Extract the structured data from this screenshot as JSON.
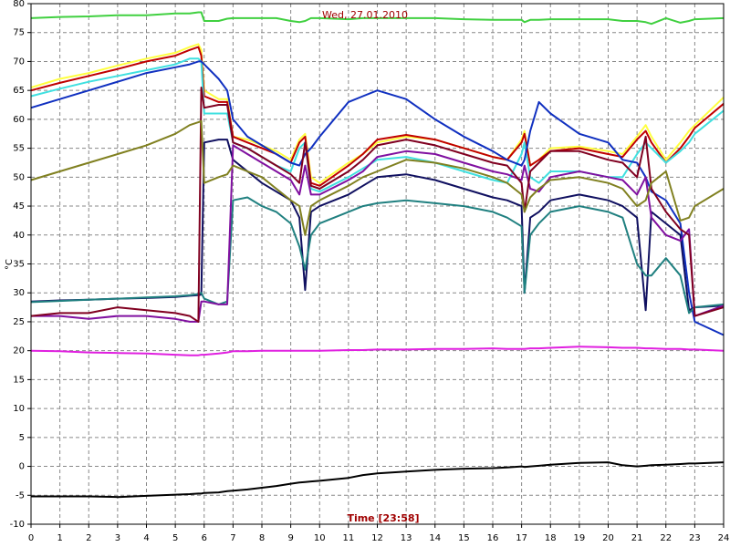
{
  "chart_data": {
    "type": "line",
    "title": "Wed, 27.01.2010",
    "x_label": "Time [23:58]",
    "y_label": "°C",
    "x": [
      0,
      1,
      2,
      3,
      4,
      5,
      5.5,
      5.8,
      5.9,
      6,
      6.5,
      6.8,
      7,
      7.5,
      8,
      8.5,
      9,
      9.3,
      9.5,
      9.7,
      10,
      11,
      11.5,
      12,
      13,
      14,
      15,
      16,
      16.5,
      17,
      17.1,
      17.3,
      17.6,
      18,
      19,
      20,
      20.5,
      21,
      21.3,
      21.5,
      22,
      22.5,
      22.8,
      23,
      24
    ],
    "xlim": [
      0,
      24
    ],
    "xticks": [
      0,
      1,
      2,
      3,
      4,
      5,
      6,
      7,
      8,
      9,
      10,
      11,
      12,
      13,
      14,
      15,
      16,
      17,
      18,
      19,
      20,
      21,
      22,
      23,
      24
    ],
    "ylim": [
      -10,
      80
    ],
    "yticks": [
      -10,
      -5,
      0,
      5,
      10,
      15,
      20,
      25,
      30,
      35,
      40,
      45,
      50,
      55,
      60,
      65,
      70,
      75,
      80
    ],
    "grid": true,
    "series": [
      {
        "color": "#40d040",
        "values": [
          77.5,
          77.7,
          77.8,
          78,
          78,
          78.3,
          78.3,
          78.5,
          78.5,
          77,
          77,
          77.4,
          77.5,
          77.5,
          77.5,
          77.5,
          77,
          76.8,
          77,
          77.5,
          77.5,
          77.3,
          77.5,
          77.5,
          77.5,
          77.5,
          77.3,
          77.2,
          77.2,
          77.2,
          76.8,
          77.2,
          77.2,
          77.3,
          77.3,
          77.3,
          77,
          77,
          76.8,
          76.5,
          77.5,
          76.7,
          77,
          77.3,
          77.5
        ]
      },
      {
        "color": "#ffff40",
        "values": [
          65.5,
          67,
          68,
          69.3,
          70.5,
          71.5,
          72.5,
          73,
          72,
          65,
          63.5,
          63.5,
          57,
          56.5,
          55.5,
          54.5,
          53,
          56.5,
          57.5,
          50,
          49,
          52.5,
          54,
          56,
          57,
          56.5,
          55,
          53.5,
          53,
          56.5,
          58,
          52,
          53,
          55,
          55.3,
          54.5,
          54,
          57,
          59,
          57,
          53,
          56,
          58,
          59,
          63.8
        ]
      },
      {
        "color": "#c00000",
        "values": [
          65,
          66.3,
          67.5,
          68.7,
          70,
          71,
          72,
          72.5,
          71,
          64,
          63,
          63,
          57,
          56,
          55,
          54,
          52.5,
          56,
          57,
          49,
          48.5,
          52,
          54,
          56.5,
          57.3,
          56.5,
          55,
          53.5,
          53,
          56,
          57.5,
          52,
          53,
          54.5,
          55,
          54,
          53.5,
          56.5,
          58,
          56,
          52.5,
          55,
          57,
          58.5,
          62.7
        ]
      },
      {
        "color": "#40e0e0",
        "values": [
          64,
          65.3,
          66.5,
          67.5,
          68.5,
          69.5,
          70.5,
          70.5,
          70,
          61,
          61,
          61,
          56,
          55,
          53.5,
          52,
          51,
          55,
          56,
          48,
          47.5,
          50,
          51.5,
          53,
          53.5,
          52.5,
          51,
          49.5,
          49,
          54,
          56,
          50,
          49,
          51,
          51,
          50,
          50,
          54,
          56,
          55,
          52.5,
          54.5,
          56,
          57.5,
          61.5
        ]
      },
      {
        "color": "#1030c0",
        "values": [
          62,
          63.5,
          65,
          66.5,
          68,
          69,
          69.5,
          70,
          70,
          69.5,
          67,
          65,
          60,
          57,
          55.5,
          54,
          52.5,
          52,
          54,
          55,
          57,
          63,
          64,
          65,
          63.5,
          60,
          57,
          54.5,
          53,
          52,
          53,
          58,
          63,
          61,
          57.5,
          56,
          53,
          52.5,
          50,
          47.5,
          46,
          42,
          30,
          25,
          22.7
        ]
      },
      {
        "color": "#101060",
        "values": [
          28.5,
          28.7,
          28.8,
          29,
          29.1,
          29.3,
          29.5,
          29.6,
          29.7,
          56,
          56.5,
          56.5,
          53,
          51,
          49,
          47.5,
          46,
          43,
          30.5,
          44,
          45,
          47,
          48.5,
          50,
          50.5,
          49.5,
          48,
          46.5,
          46,
          45,
          30,
          43,
          44,
          46,
          47,
          46,
          45,
          43,
          27,
          44,
          42,
          40,
          27,
          27.5,
          27.8
        ]
      },
      {
        "color": "#208080",
        "values": [
          28.4,
          28.6,
          28.8,
          29,
          29.2,
          29.4,
          29.6,
          29.8,
          30,
          29,
          28,
          28.5,
          46,
          46.5,
          45,
          44,
          42,
          38,
          34,
          40,
          42,
          44,
          45,
          45.5,
          46,
          45.5,
          45,
          44,
          43,
          41.5,
          30,
          40,
          42,
          44,
          45,
          44,
          43,
          35,
          33,
          33,
          36,
          33,
          26.5,
          27.5,
          28
        ]
      },
      {
        "color": "#8010a0",
        "values": [
          26,
          26,
          25.5,
          26,
          26,
          25.5,
          25,
          25,
          28.5,
          28.5,
          28,
          28,
          55.5,
          54,
          52.5,
          51,
          49.5,
          47,
          52,
          47,
          47,
          49.5,
          51,
          53.5,
          54.5,
          54,
          52.5,
          51,
          50.5,
          49.5,
          52,
          48,
          47.5,
          50,
          51,
          50,
          49.5,
          47,
          50,
          43,
          40,
          39,
          41,
          26,
          27.8
        ]
      },
      {
        "color": "#800020",
        "values": [
          26,
          26.5,
          26.5,
          27.5,
          27,
          26.5,
          26,
          25,
          65.5,
          62,
          62.5,
          62.5,
          56,
          55,
          53.5,
          52,
          50.5,
          49,
          56,
          48.5,
          48,
          51,
          53,
          55.5,
          56.5,
          55.5,
          54,
          52.5,
          52,
          49,
          44,
          51,
          52.5,
          54.5,
          54.5,
          53,
          52.5,
          50,
          57,
          48,
          44,
          41,
          40,
          26,
          27.5
        ]
      },
      {
        "color": "#808020",
        "values": [
          49.5,
          51,
          52.5,
          54,
          55.5,
          57.5,
          59,
          59.5,
          59.7,
          49,
          50,
          50.5,
          52,
          51,
          50,
          48,
          46,
          45,
          40,
          45,
          46,
          48.5,
          50,
          51,
          53,
          52.5,
          51.5,
          50,
          49,
          47,
          44,
          46.5,
          48,
          49.5,
          50,
          49,
          48,
          45,
          46,
          49,
          51,
          42.5,
          43,
          45,
          48
        ]
      },
      {
        "color": "#e020e0",
        "values": [
          20,
          19.9,
          19.7,
          19.6,
          19.5,
          19.3,
          19.2,
          19.2,
          19.3,
          19.3,
          19.5,
          19.7,
          19.9,
          19.9,
          20,
          20,
          20,
          20,
          20,
          20,
          20,
          20.1,
          20.1,
          20.2,
          20.2,
          20.3,
          20.3,
          20.4,
          20.3,
          20.3,
          20.3,
          20.4,
          20.4,
          20.5,
          20.7,
          20.6,
          20.5,
          20.5,
          20.4,
          20.4,
          20.3,
          20.3,
          20.2,
          20.2,
          20
        ]
      },
      {
        "color": "#000000",
        "values": [
          -5.2,
          -5.2,
          -5.2,
          -5.3,
          -5.1,
          -4.9,
          -4.8,
          -4.7,
          -4.7,
          -4.6,
          -4.5,
          -4.3,
          -4.2,
          -4,
          -3.7,
          -3.4,
          -3,
          -2.8,
          -2.7,
          -2.6,
          -2.5,
          -2,
          -1.5,
          -1.2,
          -0.9,
          -0.6,
          -0.4,
          -0.3,
          -0.2,
          0,
          -0.1,
          0,
          0.1,
          0.3,
          0.6,
          0.7,
          0.2,
          0,
          0.1,
          0.2,
          0.3,
          0.4,
          0.5,
          0.5,
          0.7
        ]
      }
    ]
  }
}
